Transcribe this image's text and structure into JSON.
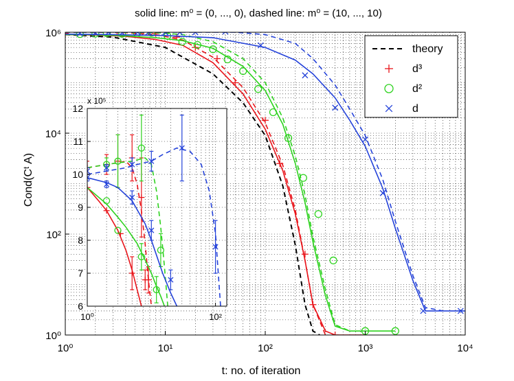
{
  "chart_data": [
    {
      "type": "line",
      "title": "solid line: m⁰ = (0, ..., 0), dashed line: m⁰ = (10, ..., 10)",
      "xlabel": "t: no. of iteration",
      "ylabel": "Cond(Cᵗ A)",
      "xscale": "log",
      "yscale": "log",
      "xlim": [
        1,
        10000
      ],
      "ylim": [
        1,
        1000000
      ],
      "grid": true,
      "legend_position": "top-right",
      "x_ticks": [
        {
          "value": 1,
          "label": "10⁰"
        },
        {
          "value": 10,
          "label": "10¹"
        },
        {
          "value": 100,
          "label": "10²"
        },
        {
          "value": 1000,
          "label": "10³"
        },
        {
          "value": 10000,
          "label": "10⁴"
        }
      ],
      "y_ticks": [
        {
          "value": 1,
          "label": "10⁰"
        },
        {
          "value": 100,
          "label": "10²"
        },
        {
          "value": 10000,
          "label": "10⁴"
        },
        {
          "value": 1000000,
          "label": "10⁶"
        }
      ],
      "legend": [
        {
          "label": "theory",
          "style": "dashed-line",
          "color": "#000000"
        },
        {
          "label": "d³",
          "marker": "plus",
          "color": "#e8141a"
        },
        {
          "label": "d²",
          "marker": "circle",
          "color": "#2dd21e"
        },
        {
          "label": "d",
          "marker": "x",
          "color": "#2442d9"
        }
      ],
      "series": [
        {
          "kind": "theory",
          "style": "dashed",
          "color": "#000000",
          "x": [
            1,
            3,
            10,
            30,
            60,
            100,
            150,
            200,
            250,
            300,
            350
          ],
          "y": [
            900000,
            800000,
            500000,
            150000,
            40000,
            9000,
            900,
            60,
            4,
            1.2,
            1
          ]
        },
        {
          "kind": "solid",
          "color": "#e8141a",
          "x": [
            1,
            2,
            4,
            8,
            15,
            30,
            60,
            100,
            150,
            200,
            250,
            300,
            400,
            500,
            1000
          ],
          "y": [
            900000,
            880000,
            830000,
            720000,
            550000,
            250000,
            60000,
            12000,
            1800,
            250,
            30,
            4,
            1.2,
            1,
            1
          ]
        },
        {
          "kind": "dashed",
          "color": "#e8141a",
          "x": [
            1,
            2,
            4,
            8,
            15,
            30,
            60,
            100,
            150,
            200,
            250,
            300,
            400
          ],
          "y": [
            1000000,
            1000000,
            980000,
            900000,
            700000,
            320000,
            80000,
            16000,
            2300,
            300,
            30,
            4,
            1
          ]
        },
        {
          "kind": "markers",
          "marker": "plus",
          "color": "#e8141a",
          "x": [
            1,
            2,
            3.3,
            5,
            8,
            13,
            20,
            33,
            50,
            100,
            140,
            250,
            300,
            500
          ],
          "y": [
            950000,
            1010000,
            1020000,
            1020000,
            950000,
            800000,
            500000,
            300000,
            100000,
            18000,
            2500,
            40,
            4,
            1
          ]
        },
        {
          "kind": "solid",
          "color": "#2dd21e",
          "x": [
            1,
            2,
            4,
            8,
            15,
            30,
            60,
            100,
            150,
            200,
            250,
            300,
            400,
            500,
            700,
            1000,
            2000
          ],
          "y": [
            900000,
            890000,
            850000,
            780000,
            680000,
            480000,
            210000,
            70000,
            15000,
            2500,
            420,
            70,
            6,
            1.5,
            1.2,
            1.2,
            1.2
          ]
        },
        {
          "kind": "dashed",
          "color": "#2dd21e",
          "x": [
            1,
            2,
            4,
            8,
            15,
            30,
            60,
            100,
            150,
            200,
            250,
            300,
            400,
            500,
            700
          ],
          "y": [
            1000000,
            1000000,
            1000000,
            980000,
            900000,
            650000,
            300000,
            100000,
            20000,
            3500,
            600,
            90,
            8,
            1.6,
            1.2
          ]
        },
        {
          "kind": "markers",
          "marker": "circle",
          "color": "#2dd21e",
          "x": [
            1.4,
            2,
            2.6,
            3.7,
            5.2,
            7.3,
            10.5,
            14.8,
            21,
            30,
            42,
            60,
            85,
            120,
            170,
            240,
            340,
            480,
            1000,
            2000
          ],
          "y": [
            920000,
            940000,
            960000,
            930000,
            950000,
            980000,
            850000,
            650000,
            560000,
            460000,
            290000,
            170000,
            75000,
            26000,
            8000,
            1300,
            250,
            30,
            1.2,
            1.2
          ]
        },
        {
          "kind": "solid",
          "color": "#2442d9",
          "x": [
            1,
            3,
            10,
            30,
            100,
            200,
            300,
            500,
            700,
            1000,
            1500,
            2000,
            3000,
            4000,
            6000,
            10000
          ],
          "y": [
            920000,
            900000,
            860000,
            780000,
            500000,
            280000,
            150000,
            50000,
            18000,
            5500,
            800,
            130,
            12,
            3,
            3,
            3
          ]
        },
        {
          "kind": "dashed",
          "color": "#2442d9",
          "x": [
            1,
            3,
            10,
            30,
            50,
            100,
            200,
            300,
            500,
            700,
            1000,
            1500,
            2000,
            3000,
            4000,
            6000
          ],
          "y": [
            1000000,
            1000000,
            1000000,
            1000000,
            1000000,
            900000,
            600000,
            300000,
            90000,
            30000,
            9000,
            1200,
            180,
            15,
            3.5,
            3
          ]
        },
        {
          "kind": "markers",
          "marker": "x",
          "color": "#2442d9",
          "x": [
            1.4,
            2,
            2.7,
            3.7,
            5.3,
            6.8,
            10,
            14,
            20,
            40,
            90,
            250,
            500,
            1000,
            1500,
            3800,
            9000
          ],
          "y": [
            950000,
            980000,
            1000000,
            980000,
            1000000,
            1000000,
            1000000,
            1000000,
            1000000,
            1030000,
            550000,
            140000,
            32000,
            7500,
            650,
            3,
            3
          ]
        }
      ]
    },
    {
      "type": "line",
      "title": "",
      "xscale": "log",
      "xlim": [
        1,
        150
      ],
      "ylim": [
        6,
        12
      ],
      "grid": true,
      "y_multiplier_label": "x 10⁵",
      "x_ticks": [
        {
          "value": 1,
          "label": "10⁰"
        },
        {
          "value": 100,
          "label": "10²"
        }
      ],
      "y_ticks": [
        {
          "value": 6,
          "label": "6"
        },
        {
          "value": 7,
          "label": "7"
        },
        {
          "value": 8,
          "label": "8"
        },
        {
          "value": 9,
          "label": "9"
        },
        {
          "value": 10,
          "label": "10"
        },
        {
          "value": 11,
          "label": "11"
        },
        {
          "value": 12,
          "label": "12"
        }
      ],
      "series": [
        {
          "kind": "solid",
          "color": "#e8141a",
          "x": [
            1,
            1.5,
            2,
            3,
            4,
            5,
            6,
            7
          ],
          "y": [
            9.6,
            9.2,
            8.9,
            8.3,
            7.7,
            7.1,
            6.5,
            6
          ]
        },
        {
          "kind": "dashed",
          "color": "#e8141a",
          "x": [
            1,
            2,
            3,
            4,
            5,
            6,
            7,
            8,
            9,
            10
          ],
          "y": [
            10.2,
            10.3,
            10.35,
            10.4,
            10.2,
            9.7,
            8.9,
            7.9,
            6.8,
            6
          ]
        },
        {
          "kind": "markers",
          "marker": "plus",
          "color": "#e8141a",
          "x": [
            1,
            2,
            3.3,
            5,
            8
          ],
          "y": [
            9.6,
            8.9,
            8.2,
            7.0,
            6.8
          ],
          "err": [
            0,
            0,
            0,
            0.5,
            0.3
          ]
        },
        {
          "kind": "markers",
          "marker": "plus",
          "color": "#e8141a",
          "x": [
            1,
            2,
            3,
            5,
            7,
            9
          ],
          "y": [
            10.2,
            10.3,
            10.4,
            10.5,
            9.3,
            6.8
          ],
          "err": [
            0.2,
            0.3,
            0.8,
            0.7,
            1.2,
            0.4
          ]
        },
        {
          "kind": "solid",
          "color": "#2dd21e",
          "x": [
            1,
            2,
            3,
            4,
            6,
            8,
            10,
            12,
            14,
            16
          ],
          "y": [
            9.6,
            9.1,
            8.7,
            8.4,
            7.9,
            7.4,
            7.0,
            6.6,
            6.3,
            6
          ]
        },
        {
          "kind": "dashed",
          "color": "#2dd21e",
          "x": [
            1,
            2,
            3,
            5,
            8,
            10,
            12,
            14,
            16,
            18
          ],
          "y": [
            10.2,
            10.3,
            10.35,
            10.4,
            10.5,
            10.3,
            9.5,
            8.4,
            7.2,
            6
          ]
        },
        {
          "kind": "markers",
          "marker": "circle",
          "color": "#2dd21e",
          "x": [
            2,
            3,
            7,
            12
          ],
          "y": [
            9.2,
            8.3,
            7.5,
            6.5
          ],
          "err": [
            0,
            0,
            0.4,
            0.4
          ]
        },
        {
          "kind": "markers",
          "marker": "circle",
          "color": "#2dd21e",
          "x": [
            2,
            3,
            7,
            14
          ],
          "y": [
            10.3,
            10.4,
            10.8,
            7.7
          ],
          "err": [
            0.2,
            0.8,
            1.0,
            0.5
          ]
        },
        {
          "kind": "solid",
          "color": "#2442d9",
          "x": [
            1,
            2,
            3,
            5,
            8,
            10,
            15,
            20,
            25
          ],
          "y": [
            9.9,
            9.75,
            9.6,
            9.2,
            8.5,
            8.0,
            7.0,
            6.4,
            6
          ]
        },
        {
          "kind": "dashed",
          "color": "#2442d9",
          "x": [
            1,
            2,
            4,
            6,
            10,
            15,
            25,
            40,
            60,
            80,
            100,
            120
          ],
          "y": [
            10.0,
            10.1,
            10.2,
            10.3,
            10.4,
            10.6,
            10.8,
            10.7,
            10.3,
            9.5,
            8.2,
            6
          ]
        },
        {
          "kind": "markers",
          "marker": "x",
          "color": "#2442d9",
          "x": [
            1,
            2,
            5,
            10,
            20
          ],
          "y": [
            9.9,
            9.7,
            9.3,
            8.3,
            6.8
          ],
          "err": [
            0.1,
            0.1,
            0.2,
            0.3,
            0.3
          ]
        },
        {
          "kind": "markers",
          "marker": "x",
          "color": "#2442d9",
          "x": [
            1,
            2,
            5,
            10,
            30,
            100
          ],
          "y": [
            10.1,
            10.2,
            10.3,
            10.4,
            10.8,
            7.8
          ],
          "err": [
            0.1,
            0.1,
            0.2,
            0.3,
            1.0,
            0.8
          ]
        }
      ]
    }
  ]
}
